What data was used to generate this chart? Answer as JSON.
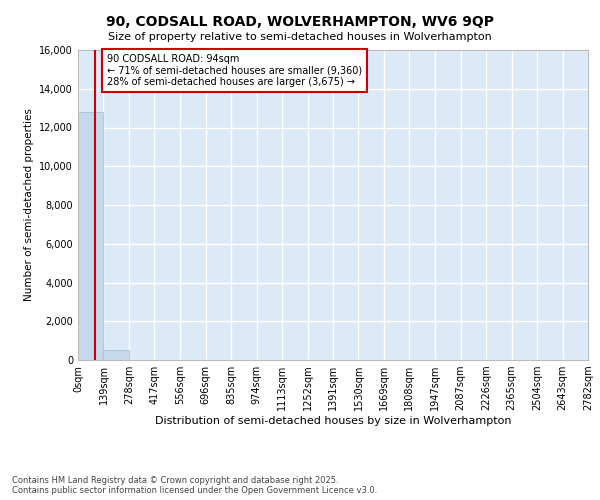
{
  "title1": "90, CODSALL ROAD, WOLVERHAMPTON, WV6 9QP",
  "title2": "Size of property relative to semi-detached houses in Wolverhampton",
  "xlabel": "Distribution of semi-detached houses by size in Wolverhampton",
  "ylabel": "Number of semi-detached properties",
  "bar_color": "#c5d8ee",
  "bar_edge_color": "#9fbcd8",
  "bin_edges": [
    0,
    139,
    278,
    417,
    556,
    696,
    835,
    974,
    1113,
    1252,
    1391,
    1530,
    1669,
    1808,
    1947,
    2087,
    2226,
    2365,
    2504,
    2643,
    2782
  ],
  "bin_labels": [
    "0sqm",
    "139sqm",
    "278sqm",
    "417sqm",
    "556sqm",
    "696sqm",
    "835sqm",
    "974sqm",
    "1113sqm",
    "1252sqm",
    "1391sqm",
    "1530sqm",
    "1669sqm",
    "1808sqm",
    "1947sqm",
    "2087sqm",
    "2226sqm",
    "2365sqm",
    "2504sqm",
    "2643sqm",
    "2782sqm"
  ],
  "bar_heights": [
    12800,
    500,
    0,
    0,
    0,
    0,
    0,
    0,
    0,
    0,
    0,
    0,
    0,
    0,
    0,
    0,
    0,
    0,
    0,
    0
  ],
  "property_size": 94,
  "red_line_color": "#cc0000",
  "annotation_text": "90 CODSALL ROAD: 94sqm\n← 71% of semi-detached houses are smaller (9,360)\n28% of semi-detached houses are larger (3,675) →",
  "annotation_box_color": "#cc0000",
  "ylim": [
    0,
    16000
  ],
  "yticks": [
    0,
    2000,
    4000,
    6000,
    8000,
    10000,
    12000,
    14000,
    16000
  ],
  "bg_color": "#dce9f7",
  "fig_bg_color": "#ffffff",
  "grid_color": "#ffffff",
  "footnote": "Contains HM Land Registry data © Crown copyright and database right 2025.\nContains public sector information licensed under the Open Government Licence v3.0."
}
